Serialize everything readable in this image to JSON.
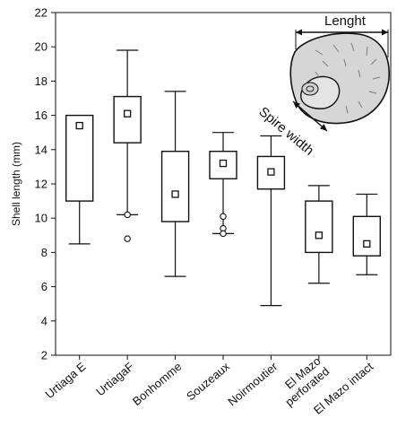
{
  "chart_data": {
    "type": "box",
    "ylabel": "Shell length (mm)",
    "xlabel": "",
    "ylim": [
      2,
      22
    ],
    "yticks": [
      2,
      4,
      6,
      8,
      10,
      12,
      14,
      16,
      18,
      20,
      22
    ],
    "grid": false,
    "categories": [
      {
        "label_lines": [
          "Urtiaga E"
        ],
        "whisker_low": 8.5,
        "q1": 11.0,
        "q3": 16.0,
        "whisker_high": 16.0,
        "mean": 15.4,
        "outliers": []
      },
      {
        "label_lines": [
          "UrtiagaF"
        ],
        "whisker_low": 10.2,
        "q1": 14.4,
        "q3": 17.1,
        "whisker_high": 19.8,
        "mean": 16.1,
        "outliers": [
          10.2,
          8.8
        ]
      },
      {
        "label_lines": [
          "Bonhomme"
        ],
        "whisker_low": 6.6,
        "q1": 9.8,
        "q3": 13.9,
        "whisker_high": 17.4,
        "mean": 11.4,
        "outliers": []
      },
      {
        "label_lines": [
          "Souzeaux"
        ],
        "whisker_low": 9.1,
        "q1": 12.3,
        "q3": 13.9,
        "whisker_high": 15.0,
        "mean": 13.2,
        "outliers": [
          10.1,
          9.4,
          9.1
        ]
      },
      {
        "label_lines": [
          "Noirmoutier"
        ],
        "whisker_low": 4.9,
        "q1": 11.7,
        "q3": 13.6,
        "whisker_high": 14.8,
        "mean": 12.7,
        "outliers": []
      },
      {
        "label_lines": [
          "El Mazo",
          "perforated"
        ],
        "whisker_low": 6.2,
        "q1": 8.0,
        "q3": 11.0,
        "whisker_high": 11.9,
        "mean": 9.0,
        "outliers": []
      },
      {
        "label_lines": [
          "El Mazo intact"
        ],
        "whisker_low": 6.7,
        "q1": 7.8,
        "q3": 10.1,
        "whisker_high": 11.4,
        "mean": 8.5,
        "outliers": []
      }
    ],
    "inset": {
      "labels": [
        "Lenght",
        "Spire width"
      ],
      "depicts": "snail-shell"
    }
  },
  "colors": {
    "axis": "#111111",
    "box_fill": "#ffffff",
    "shell_fill": "#d6d6d6"
  }
}
